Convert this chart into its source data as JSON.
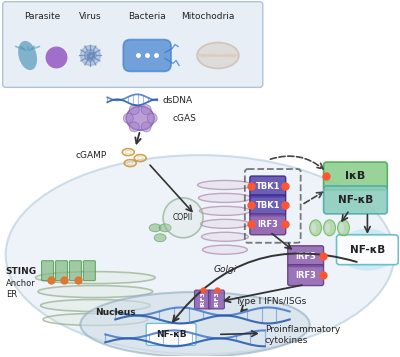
{
  "bg_color": "#ffffff",
  "legend_box_color": "#e8eef5",
  "legend_box_edge": "#b0c4d8",
  "legend_labels": [
    "Parasite",
    "Virus",
    "Bacteria",
    "Mitochodria"
  ],
  "cell_color": "#dce8f2",
  "cell_edge_color": "#a8c0d4",
  "nucleus_color": "#d0dce8",
  "nucleus_edge": "#90aabb",
  "er_color_fill": "#d0dcc8",
  "er_color_edge": "#90aa88",
  "golgi_color": "#d8b8d8",
  "golgi_edge": "#b090b0",
  "golgi_inner": "#c8a8c8",
  "sting_green": "#88bb88",
  "sting_edge": "#449944",
  "anchor_orange": "#dd7733",
  "tbk1_color": "#5544aa",
  "tbk1_edge": "#332288",
  "irf3_color": "#8855aa",
  "irf3_edge": "#553377",
  "ikb_color": "#88cc88",
  "ikb_edge": "#44aa44",
  "nfkb_box_color": "#88ccbb",
  "nfkb_box_edge": "#44aaaa",
  "nfkb_free_color": "#aaddee",
  "nfkb_free_edge": "#66bbcc",
  "cgamp_outer": "#cc9944",
  "cgamp_inner": "#eecc88",
  "phospho_color": "#ff5533",
  "dna_blue1": "#4477cc",
  "dna_blue2": "#2255aa",
  "arrow_color": "#333333",
  "dashed_color": "#444444",
  "text_color": "#222222",
  "para1_color": "#5599bb",
  "para2_color": "#8844bb",
  "virus_color": "#6688bb",
  "bacteria_color": "#3377cc",
  "mito_color": "#ccbbaa",
  "mito_inner": "#ddccbb",
  "copii_color": "#ccddcc",
  "copii_edge": "#88aa88",
  "green_shape_color": "#99cc88",
  "green_shape_edge": "#55aa44"
}
